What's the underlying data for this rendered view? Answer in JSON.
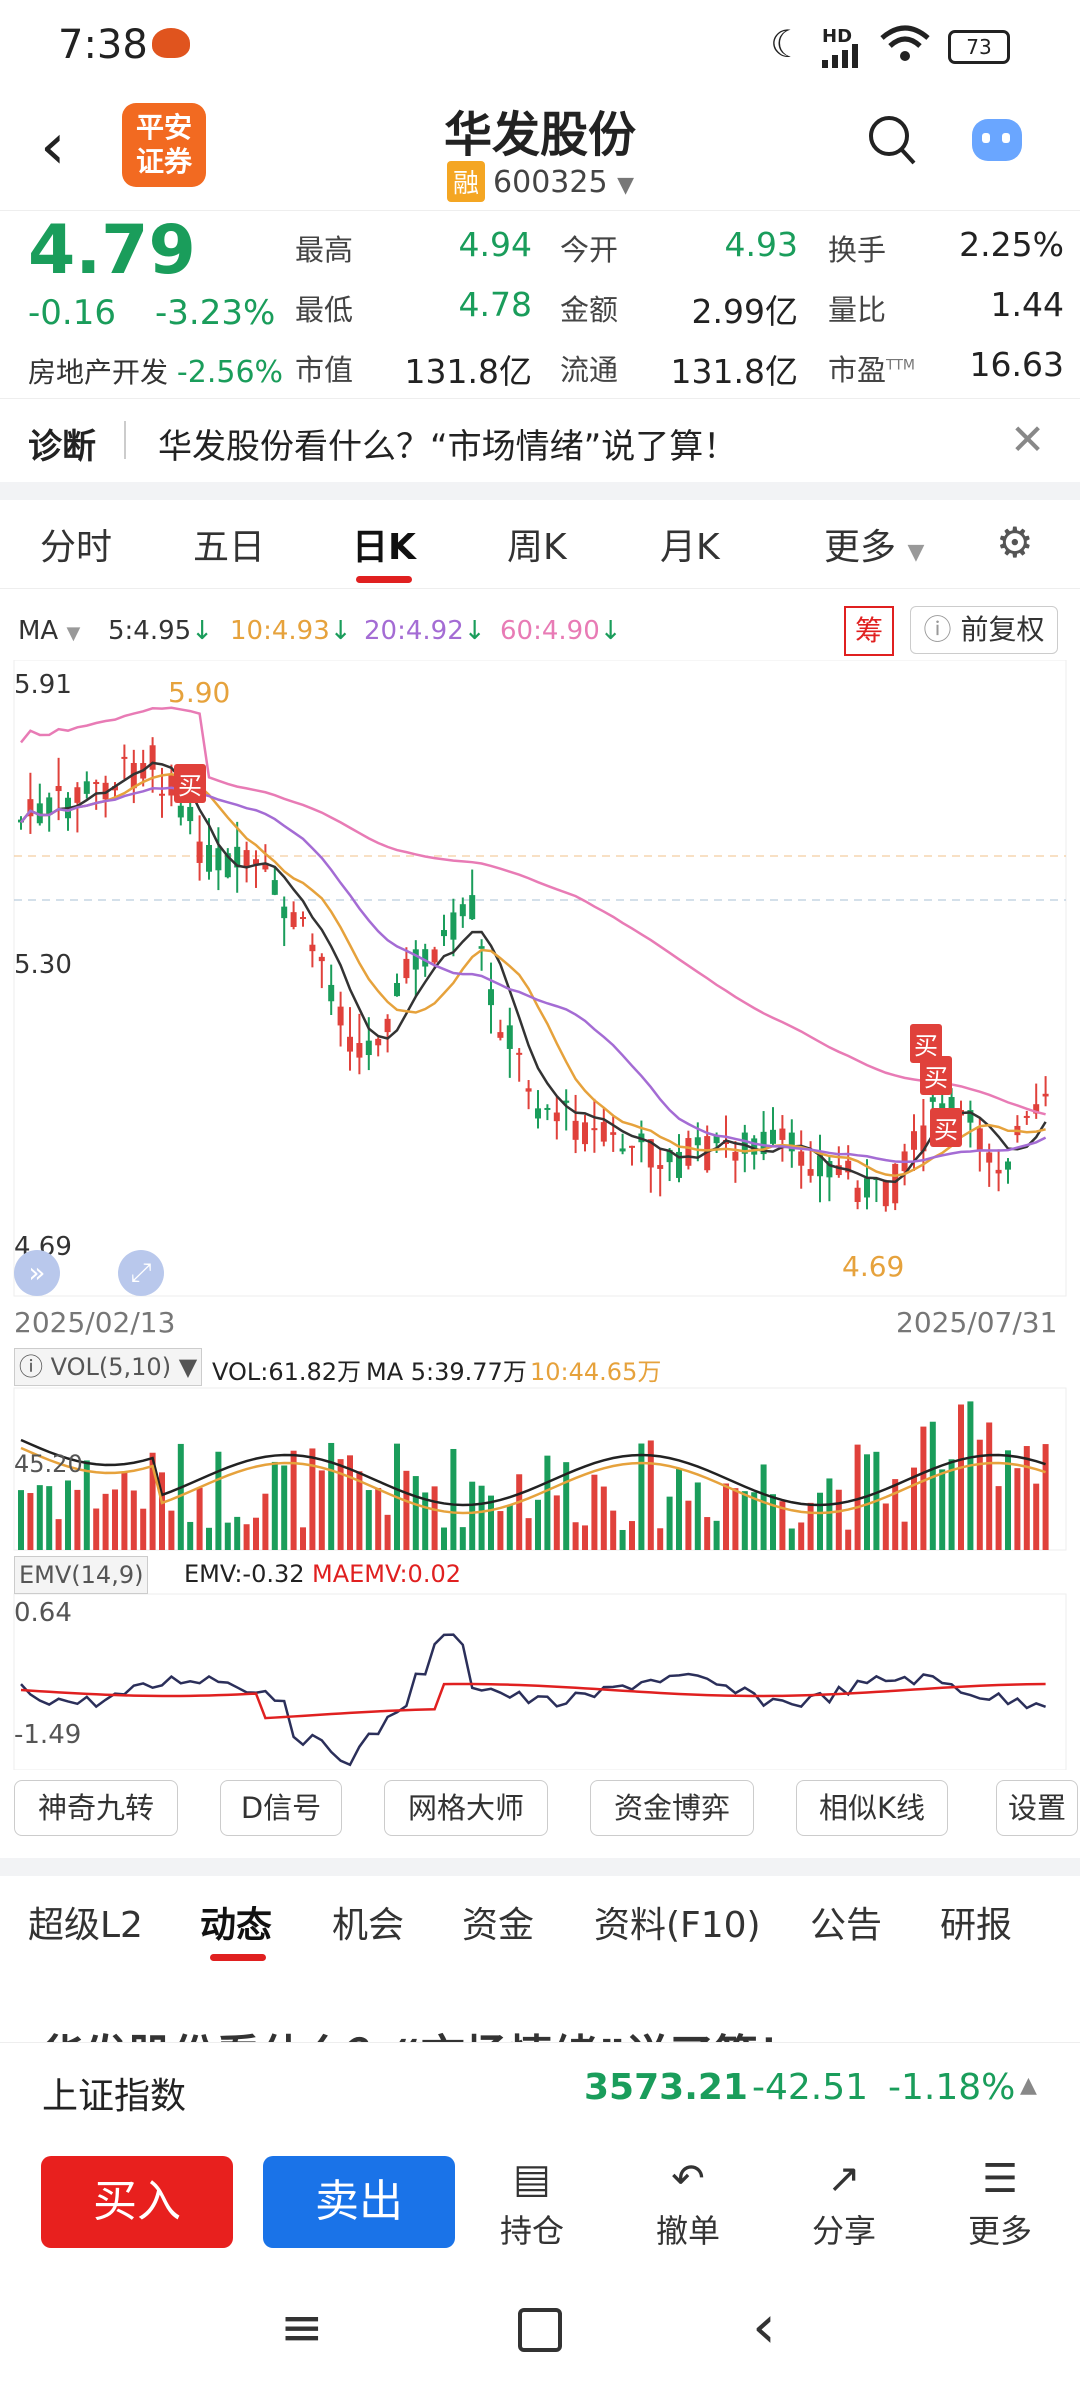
{
  "status": {
    "time": "7:38",
    "network": "HD",
    "battery": "73"
  },
  "header": {
    "title": "华发股份",
    "rong": "融",
    "code": "600325",
    "logo_line1": "平安",
    "logo_line2": "证券"
  },
  "quote": {
    "price": "4.79",
    "change": "-0.16",
    "change_pct": "-3.23%",
    "sector_name": "房地产开发",
    "sector_pct": "-2.56%",
    "labels": {
      "high": "最高",
      "low": "最低",
      "mcap": "市值",
      "open": "今开",
      "amount": "金额",
      "float": "流通",
      "turnover": "换手",
      "vol_ratio": "量比",
      "pe": "市盈",
      "pe_sup": "TTM"
    },
    "values": {
      "high": "4.94",
      "low": "4.78",
      "mcap": "131.8亿",
      "open": "4.93",
      "amount": "2.99亿",
      "float": "131.8亿",
      "turnover": "2.25%",
      "vol_ratio": "1.44",
      "pe": "16.63"
    }
  },
  "diagnose": {
    "label": "诊断",
    "text": "华发股份看什么？“市场情绪”说了算！"
  },
  "tabs": [
    "分时",
    "五日",
    "日K",
    "周K",
    "月K",
    "更多"
  ],
  "ma": {
    "label": "MA",
    "ma5": "5:4.95",
    "ma10": "10:4.93",
    "ma20": "20:4.92",
    "ma60": "60:4.90",
    "chip": "筹",
    "fq": "前复权"
  },
  "chart": {
    "y_max_label": "5.91",
    "y_mid_label": "5.30",
    "y_min_label": "4.69",
    "high_mark": "5.90",
    "low_mark": "4.69",
    "date_start": "2025/02/13",
    "date_end": "2025/07/31",
    "buy_marker": "买",
    "vol_label": "VOL(5,10)",
    "vol_value": "VOL:61.82万",
    "vol_ma5": "MA 5:39.77万",
    "vol_ma10": "10:44.65万",
    "vol_axis": "45.20",
    "emv_label": "EMV(14,9)",
    "emv_value": "EMV:-0.32",
    "maemv_value": "MAEMV:0.02",
    "emv_max": "0.64",
    "emv_min": "-1.49"
  },
  "tools": [
    "神奇九转",
    "D信号",
    "网格大师",
    "资金博弈",
    "相似K线",
    "设置"
  ],
  "news_tabs": [
    "超级L2",
    "动态",
    "机会",
    "资金",
    "资料(F10)",
    "公告",
    "研报"
  ],
  "news_preview": "华发股份看什么？“市场情绪”说了算！",
  "index": {
    "name": "上证指数",
    "value": "3573.21",
    "change": "-42.51",
    "pct": "-1.18%"
  },
  "bottom": {
    "buy": "买入",
    "sell": "卖出",
    "hold": "持仓",
    "cancel": "撤单",
    "share": "分享",
    "more": "更多"
  }
}
